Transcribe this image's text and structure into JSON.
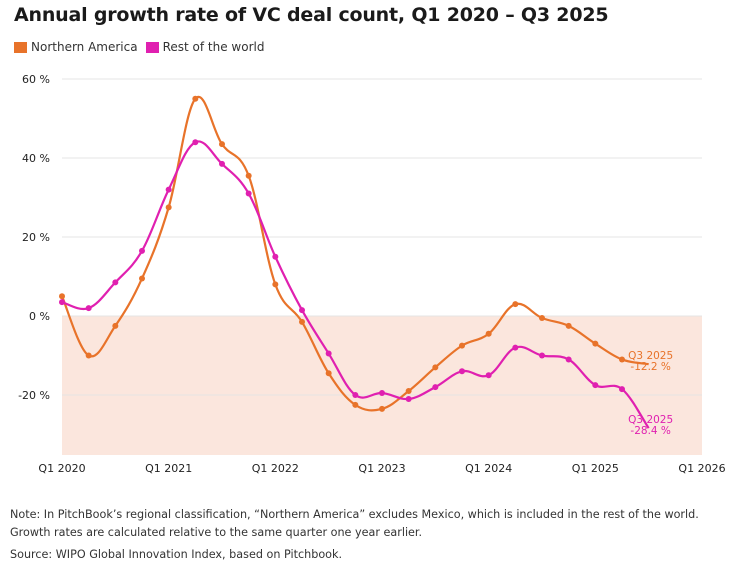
{
  "chart_data": {
    "type": "line",
    "title": "Annual growth rate of VC deal count, Q1 2020 – Q3 2025",
    "xlabel": "",
    "ylabel": "",
    "ylim": [
      -35,
      60
    ],
    "shaded_negative_region": true,
    "x": [
      "Q1 2020",
      "Q2 2020",
      "Q3 2020",
      "Q4 2020",
      "Q1 2021",
      "Q2 2021",
      "Q3 2021",
      "Q4 2021",
      "Q1 2022",
      "Q2 2022",
      "Q3 2022",
      "Q4 2022",
      "Q1 2023",
      "Q2 2023",
      "Q3 2023",
      "Q4 2023",
      "Q1 2024",
      "Q2 2024",
      "Q3 2024",
      "Q4 2024",
      "Q1 2025",
      "Q2 2025",
      "Q3 2025"
    ],
    "x_ticks": [
      "Q1 2020",
      "Q1 2021",
      "Q1 2022",
      "Q1 2023",
      "Q1 2024",
      "Q1 2025",
      "Q1 2026"
    ],
    "y_ticks": [
      {
        "value": 60,
        "label": "60 %"
      },
      {
        "value": 40,
        "label": "40 %"
      },
      {
        "value": 20,
        "label": "20 %"
      },
      {
        "value": 0,
        "label": "0 %"
      },
      {
        "value": -20,
        "label": "-20 %"
      }
    ],
    "series": [
      {
        "name": "Northern America",
        "color": "#e8732a",
        "values": [
          5,
          -10,
          -2.5,
          9.5,
          27.5,
          55,
          43.5,
          35.5,
          8,
          -1.5,
          -14.5,
          -22.5,
          -23.5,
          -19,
          -13,
          -7.5,
          -4.5,
          3,
          -0.5,
          -2.5,
          -7,
          -11,
          -12.2
        ],
        "end_label": "Q3 2025",
        "end_value_label": "-12.2 %"
      },
      {
        "name": "Rest of the world",
        "color": "#e020b0",
        "values": [
          3.5,
          2,
          8.5,
          16.5,
          32,
          44,
          38.5,
          31,
          15,
          1.5,
          -9.5,
          -20,
          -19.5,
          -21,
          -18,
          -14,
          -15,
          -8,
          -10,
          -11,
          -17.5,
          -18.5,
          -28.4
        ],
        "end_label": "Q3 2025",
        "end_value_label": "-28.4 %"
      }
    ]
  },
  "footer": {
    "note": "Note: In PitchBook’s regional classification, “Northern America” excludes Mexico, which is included in the rest of the world. Growth rates are calculated relative to the same quarter one year earlier.",
    "source": "Source: WIPO Global Innovation Index, based on Pitchbook."
  }
}
